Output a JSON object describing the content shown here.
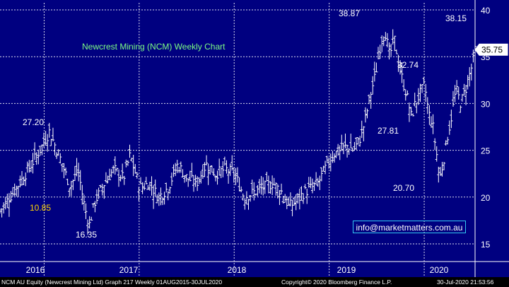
{
  "chart_data": {
    "type": "ohlc",
    "title": "Newcrest Mining (NCM) Weekly Chart",
    "y_ticks": [
      15,
      20,
      25,
      30,
      35,
      40
    ],
    "ylim": [
      14.5,
      41
    ],
    "x_labels": [
      "2016",
      "2017",
      "2018",
      "2019",
      "2020"
    ],
    "last_price": "35.75",
    "annotations": [
      {
        "text": "38.87",
        "value": 38.87,
        "date": "2019-07"
      },
      {
        "text": "38.15",
        "value": 38.15,
        "date": "2020-07"
      },
      {
        "text": "32.74",
        "value": 32.74,
        "date": "2019-12"
      },
      {
        "text": "27.81",
        "value": 27.81,
        "date": "2019-10"
      },
      {
        "text": "27.20",
        "value": 27.2,
        "date": "2016-02"
      },
      {
        "text": "20.70",
        "value": 20.7,
        "date": "2020-03"
      },
      {
        "text": "10.85",
        "value": 10.85,
        "date": "2016-04"
      },
      {
        "text": "16.35",
        "value": 16.35,
        "date": "2016-08"
      }
    ],
    "series_close": [
      {
        "t": 2015.58,
        "v": 18.5
      },
      {
        "t": 2015.72,
        "v": 20.5
      },
      {
        "t": 2015.85,
        "v": 22.5
      },
      {
        "t": 2016.0,
        "v": 25.0
      },
      {
        "t": 2016.1,
        "v": 27.0
      },
      {
        "t": 2016.22,
        "v": 24.0
      },
      {
        "t": 2016.32,
        "v": 21.0
      },
      {
        "t": 2016.4,
        "v": 23.0
      },
      {
        "t": 2016.47,
        "v": 19.0
      },
      {
        "t": 2016.52,
        "v": 17.0
      },
      {
        "t": 2016.58,
        "v": 19.5
      },
      {
        "t": 2016.68,
        "v": 21.5
      },
      {
        "t": 2016.78,
        "v": 23.0
      },
      {
        "t": 2016.88,
        "v": 22.0
      },
      {
        "t": 2016.95,
        "v": 24.5
      },
      {
        "t": 2017.05,
        "v": 21.0
      },
      {
        "t": 2017.15,
        "v": 21.5
      },
      {
        "t": 2017.25,
        "v": 20.0
      },
      {
        "t": 2017.35,
        "v": 21.0
      },
      {
        "t": 2017.45,
        "v": 23.5
      },
      {
        "t": 2017.55,
        "v": 22.0
      },
      {
        "t": 2017.65,
        "v": 21.5
      },
      {
        "t": 2017.75,
        "v": 23.5
      },
      {
        "t": 2017.85,
        "v": 22.5
      },
      {
        "t": 2017.95,
        "v": 23.0
      },
      {
        "t": 2018.05,
        "v": 22.5
      },
      {
        "t": 2018.15,
        "v": 20.0
      },
      {
        "t": 2018.25,
        "v": 20.5
      },
      {
        "t": 2018.35,
        "v": 21.0
      },
      {
        "t": 2018.45,
        "v": 21.5
      },
      {
        "t": 2018.55,
        "v": 20.5
      },
      {
        "t": 2018.62,
        "v": 19.0
      },
      {
        "t": 2018.7,
        "v": 19.5
      },
      {
        "t": 2018.78,
        "v": 20.5
      },
      {
        "t": 2018.86,
        "v": 21.0
      },
      {
        "t": 2018.93,
        "v": 21.5
      },
      {
        "t": 2019.0,
        "v": 23.0
      },
      {
        "t": 2019.08,
        "v": 24.5
      },
      {
        "t": 2019.16,
        "v": 25.0
      },
      {
        "t": 2019.24,
        "v": 25.5
      },
      {
        "t": 2019.3,
        "v": 25.0
      },
      {
        "t": 2019.36,
        "v": 26.0
      },
      {
        "t": 2019.42,
        "v": 28.0
      },
      {
        "t": 2019.48,
        "v": 31.0
      },
      {
        "t": 2019.53,
        "v": 33.0
      },
      {
        "t": 2019.58,
        "v": 36.0
      },
      {
        "t": 2019.63,
        "v": 38.0
      },
      {
        "t": 2019.68,
        "v": 35.0
      },
      {
        "t": 2019.73,
        "v": 37.0
      },
      {
        "t": 2019.78,
        "v": 34.0
      },
      {
        "t": 2019.83,
        "v": 32.0
      },
      {
        "t": 2019.87,
        "v": 30.5
      },
      {
        "t": 2019.91,
        "v": 28.5
      },
      {
        "t": 2019.95,
        "v": 30.0
      },
      {
        "t": 2020.0,
        "v": 31.0
      },
      {
        "t": 2020.05,
        "v": 32.0
      },
      {
        "t": 2020.09,
        "v": 29.0
      },
      {
        "t": 2020.13,
        "v": 28.0
      },
      {
        "t": 2020.17,
        "v": 25.0
      },
      {
        "t": 2020.21,
        "v": 22.0
      },
      {
        "t": 2020.25,
        "v": 24.0
      },
      {
        "t": 2020.29,
        "v": 26.5
      },
      {
        "t": 2020.33,
        "v": 28.5
      },
      {
        "t": 2020.38,
        "v": 31.5
      },
      {
        "t": 2020.43,
        "v": 30.0
      },
      {
        "t": 2020.48,
        "v": 31.5
      },
      {
        "t": 2020.52,
        "v": 33.0
      },
      {
        "t": 2020.56,
        "v": 34.5
      },
      {
        "t": 2020.58,
        "v": 35.75
      }
    ]
  },
  "email": "info@marketmatters.com.au",
  "footer": {
    "left": "NCM AU Equity (Newcrest Mining Ltd) Graph 217  Weekly 01AUG2015-30JUL2020",
    "middle": "Copyright© 2020 Bloomberg Finance L.P.",
    "right": "30-Jul-2020 21:53:56"
  },
  "colors": {
    "background": "#000080",
    "bars": "#ffffff",
    "title": "#7cfc84",
    "low_label": "#ffd400",
    "grid": "#ffffff",
    "email_border": "#34c9f0"
  }
}
